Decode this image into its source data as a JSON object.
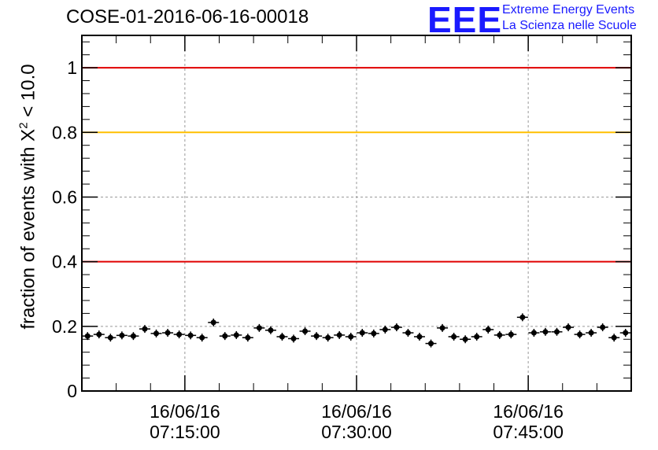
{
  "title": "COSE-01-2016-06-16-00018",
  "logo": {
    "mark": "EEE",
    "line1": "Extreme Energy Events",
    "line2": "La Scienza nelle Scuole",
    "color": "#1a1aff"
  },
  "y_axis": {
    "label_prefix": "fraction of events with X",
    "label_sup": "2",
    "label_suffix": " < 10.0"
  },
  "chart_data": {
    "type": "scatter",
    "title": "COSE-01-2016-06-16-00018",
    "ylabel": "fraction of events with X² < 10.0",
    "xlabel": "",
    "ylim": [
      0,
      1.1
    ],
    "xlim_minutes": [
      0,
      48
    ],
    "x_axis_type": "time",
    "x_ticks": [
      {
        "date": "16/06/16",
        "time": "07:15:00",
        "minutes": 9
      },
      {
        "date": "16/06/16",
        "time": "07:30:00",
        "minutes": 24
      },
      {
        "date": "16/06/16",
        "time": "07:45:00",
        "minutes": 39
      }
    ],
    "y_ticks": [
      {
        "value": 0,
        "label": "0"
      },
      {
        "value": 0.2,
        "label": "0.2"
      },
      {
        "value": 0.4,
        "label": "0.4"
      },
      {
        "value": 0.6,
        "label": "0.6"
      },
      {
        "value": 0.8,
        "label": "0.8"
      },
      {
        "value": 1,
        "label": "1"
      }
    ],
    "grid": true,
    "reference_lines": [
      {
        "y": 1.0,
        "color": "#e00000"
      },
      {
        "y": 0.8,
        "color": "#ffc000"
      },
      {
        "y": 0.4,
        "color": "#e00000"
      }
    ],
    "series": [
      {
        "color": "#000000",
        "x_minutes": [
          0.5,
          1.5,
          2.5,
          3.5,
          4.5,
          5.5,
          6.5,
          7.5,
          8.5,
          9.5,
          10.5,
          11.5,
          12.5,
          13.5,
          14.5,
          15.5,
          16.5,
          17.5,
          18.5,
          19.5,
          20.5,
          21.5,
          22.5,
          23.5,
          24.5,
          25.5,
          26.5,
          27.5,
          28.5,
          29.5,
          30.5,
          31.5,
          32.5,
          33.5,
          34.5,
          35.5,
          36.5,
          37.5,
          38.5,
          39.5,
          40.5,
          41.5,
          42.5,
          43.5,
          44.5,
          45.5,
          46.5,
          47.5
        ],
        "values": [
          0.17,
          0.175,
          0.165,
          0.172,
          0.17,
          0.192,
          0.178,
          0.18,
          0.175,
          0.172,
          0.165,
          0.212,
          0.17,
          0.173,
          0.165,
          0.195,
          0.188,
          0.168,
          0.162,
          0.185,
          0.17,
          0.165,
          0.173,
          0.168,
          0.18,
          0.178,
          0.19,
          0.197,
          0.18,
          0.168,
          0.147,
          0.195,
          0.168,
          0.16,
          0.168,
          0.19,
          0.173,
          0.175,
          0.228,
          0.18,
          0.183,
          0.183,
          0.197,
          0.175,
          0.18,
          0.197,
          0.165,
          0.18
        ]
      }
    ]
  }
}
